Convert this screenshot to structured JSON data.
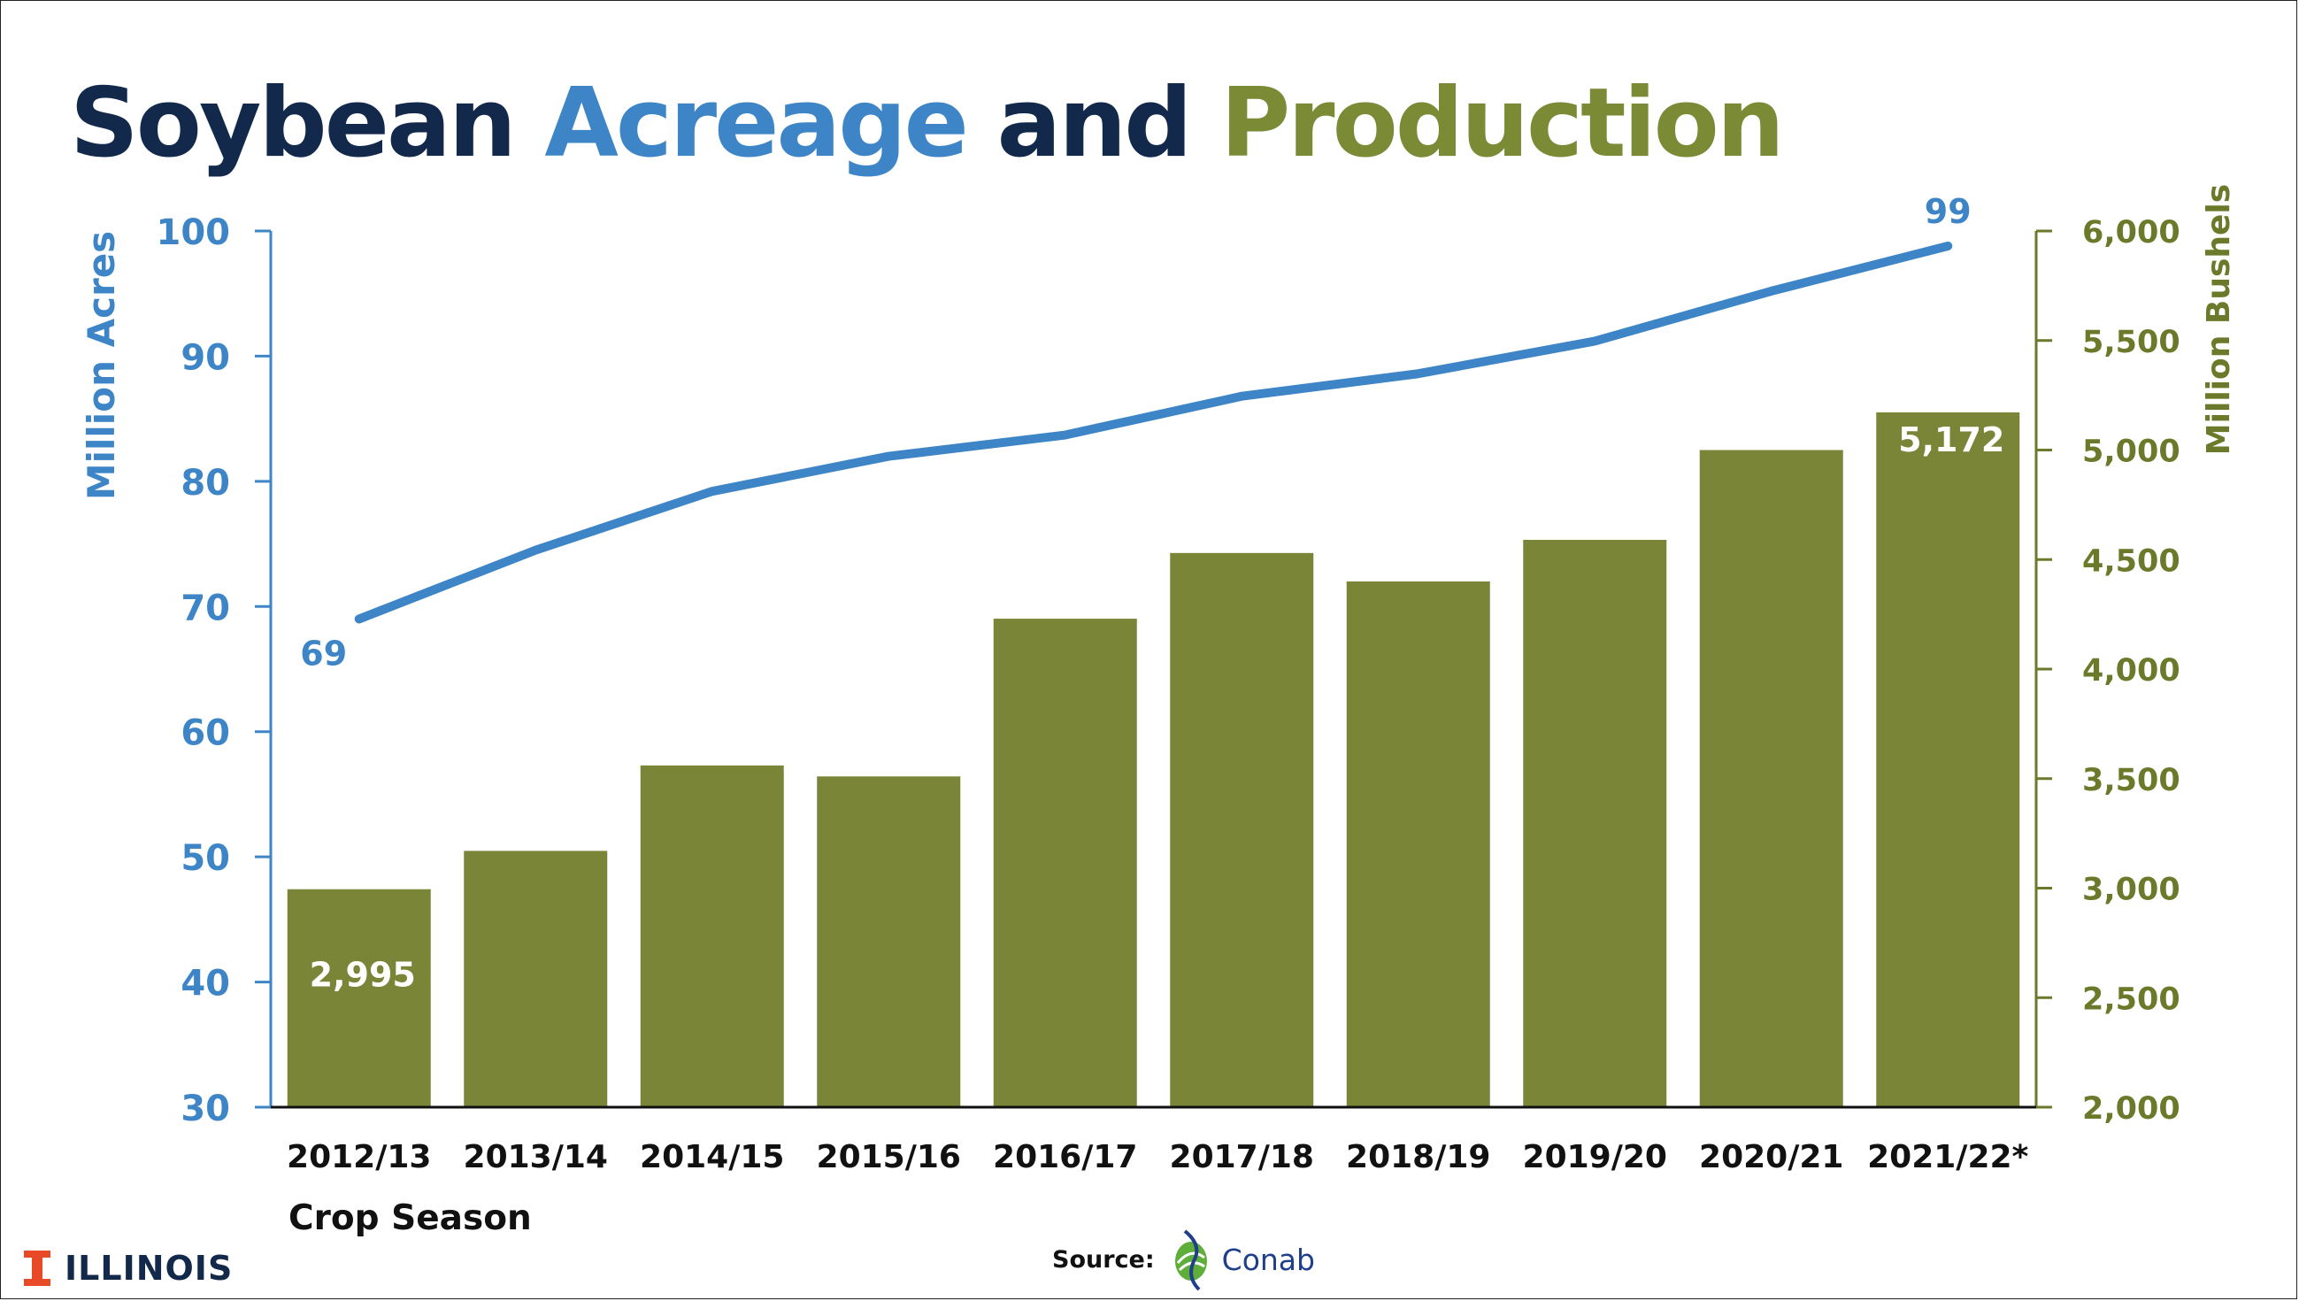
{
  "title": {
    "part1": "Soybean ",
    "part2": "Acreage",
    "part3": " and ",
    "part4": "Production",
    "color1": "#13294b",
    "color2": "#3d85c6",
    "color3": "#13294b",
    "color4": "#7a8a35"
  },
  "chart_data": {
    "type": "bar",
    "categories": [
      "2012/13",
      "2013/14",
      "2014/15",
      "2015/16",
      "2016/17",
      "2017/18",
      "2018/19",
      "2019/20",
      "2020/21",
      "2021/22*"
    ],
    "series": [
      {
        "name": "",
        "type": "bar",
        "axis": "right",
        "values": [
          2995,
          3170,
          3560,
          3510,
          4230,
          4530,
          4400,
          4590,
          5000,
          5172
        ],
        "color": "#7a8538",
        "data_labels": [
          "2,995",
          "",
          "",
          "",
          "",
          "",
          "",
          "",
          "",
          "5,172"
        ]
      },
      {
        "name": "",
        "type": "line",
        "axis": "left",
        "values": [
          69,
          74.5,
          79.2,
          82,
          83.7,
          86.8,
          88.6,
          91.2,
          95.2,
          98.8
        ],
        "color": "#3d85c6",
        "data_labels": [
          "69",
          "",
          "",
          "",
          "",
          "",
          "",
          "",
          "",
          "99"
        ]
      }
    ],
    "y_left": {
      "label": "Million Acres",
      "ylim": [
        30,
        100
      ],
      "ticks": [
        30,
        40,
        50,
        60,
        70,
        80,
        90,
        100
      ],
      "tick_labels": [
        "30",
        "40",
        "50",
        "60",
        "70",
        "80",
        "90",
        "100"
      ],
      "color": "#3d85c6"
    },
    "y_right": {
      "label": "Million Bushels",
      "ylim": [
        2000,
        6000
      ],
      "ticks": [
        2000,
        2500,
        3000,
        3500,
        4000,
        4500,
        5000,
        5500,
        6000
      ],
      "tick_labels": [
        "2,000",
        "2,500",
        "3,000",
        "3,500",
        "4,000",
        "4,500",
        "5,000",
        "5,500",
        "6,000"
      ],
      "color": "#6b7a2a"
    },
    "xlabel": "Crop Season",
    "grid": false,
    "legend": "none"
  },
  "footer": {
    "logo_text": "ILLINOIS",
    "logo_color": "#e84a27",
    "source_label": "Source:",
    "source_name": "Conab"
  }
}
